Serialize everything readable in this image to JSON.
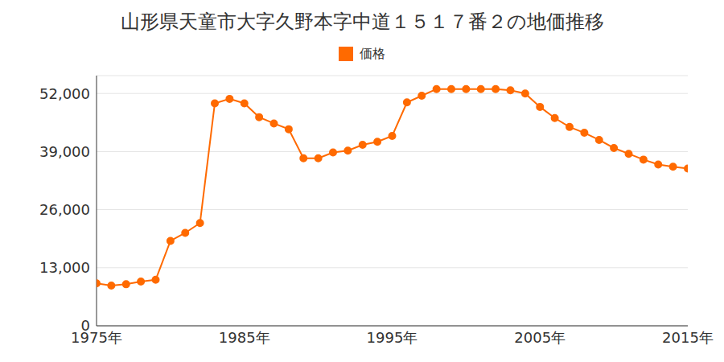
{
  "chart_data": {
    "type": "line",
    "title": "山形県天童市大字久野本字中道１５１７番２の地価推移",
    "x": [
      1975,
      1976,
      1977,
      1978,
      1979,
      1980,
      1981,
      1982,
      1983,
      1984,
      1985,
      1986,
      1987,
      1988,
      1989,
      1990,
      1991,
      1992,
      1993,
      1994,
      1995,
      1996,
      1997,
      1998,
      1999,
      2000,
      2001,
      2002,
      2003,
      2004,
      2005,
      2006,
      2007,
      2008,
      2009,
      2010,
      2011,
      2012,
      2013,
      2014,
      2015
    ],
    "series": [
      {
        "name": "価格",
        "color": "#ff6a00",
        "marker": "circle",
        "values": [
          9500,
          9000,
          9300,
          9900,
          10300,
          19000,
          20800,
          23000,
          49800,
          50800,
          49800,
          46700,
          45300,
          44000,
          37500,
          37500,
          38800,
          39200,
          40500,
          41200,
          42500,
          50000,
          51500,
          53000,
          53000,
          53000,
          53000,
          53000,
          52700,
          52000,
          49000,
          46500,
          44500,
          43200,
          41600,
          39800,
          38500,
          37200,
          36100,
          35600,
          35200
        ]
      }
    ],
    "xlim": [
      1975,
      2015
    ],
    "xticks": [
      {
        "value": 1975,
        "label": "1975年"
      },
      {
        "value": 1985,
        "label": "1985年"
      },
      {
        "value": 1995,
        "label": "1995年"
      },
      {
        "value": 2005,
        "label": "2005年"
      },
      {
        "value": 2015,
        "label": "2015年"
      }
    ],
    "ylim": [
      0,
      56000
    ],
    "yticks": [
      0,
      {
        "value": 13000,
        "label": "13,000"
      },
      {
        "value": 26000,
        "label": "26,000"
      },
      {
        "value": 39000,
        "label": "39,000"
      },
      {
        "value": 52000,
        "label": "52,000"
      }
    ],
    "grid": true,
    "legend": "top"
  }
}
